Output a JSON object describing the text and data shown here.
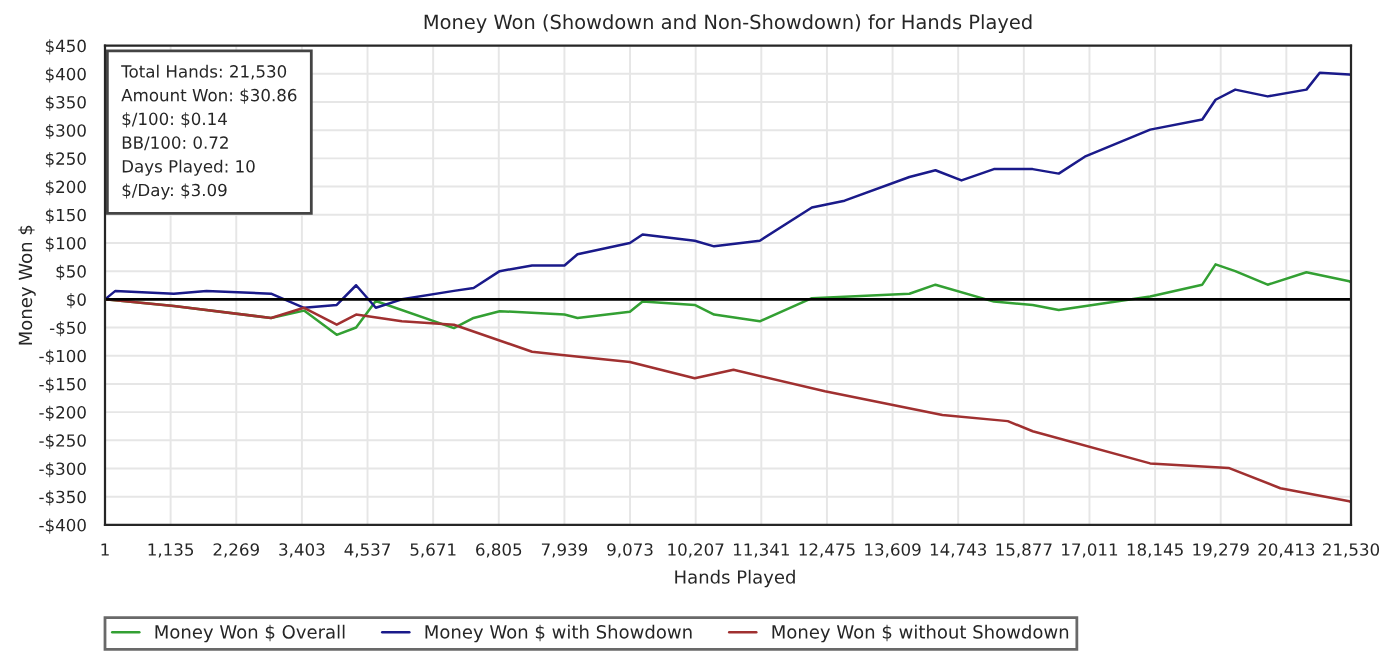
{
  "chart_data": {
    "type": "line",
    "title": "Money Won (Showdown and Non-Showdown) for Hands Played",
    "xlabel": "Hands Played",
    "ylabel": "Money Won $",
    "annotations": [
      "Total Hands: 21,530\nAmount Won: $30.86\n$/100: $0.14\nBB/100: 0.72\nDays Played: 10\n$/Day: $3.09"
    ],
    "xlim": [
      1,
      21530
    ],
    "ylim": [
      -400,
      450
    ],
    "xticks": [
      {
        "value": 1,
        "label": "1"
      },
      {
        "value": 1135,
        "label": "1,135"
      },
      {
        "value": 2269,
        "label": "2,269"
      },
      {
        "value": 3403,
        "label": "3,403"
      },
      {
        "value": 4537,
        "label": "4,537"
      },
      {
        "value": 5671,
        "label": "5,671"
      },
      {
        "value": 6805,
        "label": "6,805"
      },
      {
        "value": 7939,
        "label": "7,939"
      },
      {
        "value": 9073,
        "label": "9,073"
      },
      {
        "value": 10207,
        "label": "10,207"
      },
      {
        "value": 11341,
        "label": "11,341"
      },
      {
        "value": 12475,
        "label": "12,475"
      },
      {
        "value": 13609,
        "label": "13,609"
      },
      {
        "value": 14743,
        "label": "14,743"
      },
      {
        "value": 15877,
        "label": "15,877"
      },
      {
        "value": 17011,
        "label": "17,011"
      },
      {
        "value": 18145,
        "label": "18,145"
      },
      {
        "value": 19279,
        "label": "19,279"
      },
      {
        "value": 20413,
        "label": "20,413"
      },
      {
        "value": 21530,
        "label": "21,530"
      }
    ],
    "yticks": [
      {
        "value": -400,
        "label": "-$400"
      },
      {
        "value": -350,
        "label": "-$350"
      },
      {
        "value": -300,
        "label": "-$300"
      },
      {
        "value": -250,
        "label": "-$250"
      },
      {
        "value": -200,
        "label": "-$200"
      },
      {
        "value": -150,
        "label": "-$150"
      },
      {
        "value": -100,
        "label": "-$100"
      },
      {
        "value": -50,
        "label": "-$50"
      },
      {
        "value": 0,
        "label": "$0"
      },
      {
        "value": 50,
        "label": "$50"
      },
      {
        "value": 100,
        "label": "$100"
      },
      {
        "value": 150,
        "label": "$150"
      },
      {
        "value": 200,
        "label": "$200"
      },
      {
        "value": 250,
        "label": "$250"
      },
      {
        "value": 300,
        "label": "$300"
      },
      {
        "value": 350,
        "label": "$350"
      },
      {
        "value": 400,
        "label": "$400"
      },
      {
        "value": 450,
        "label": "$450"
      }
    ],
    "grid": true,
    "legend": "bottom",
    "ref_lines": [
      {
        "axis": "y",
        "value": 0,
        "color": "#000000"
      }
    ],
    "series": [
      {
        "name": "Money Won $ Overall",
        "color": "#33a033",
        "x": [
          1,
          1190,
          2870,
          3440,
          4005,
          4340,
          4680,
          6030,
          6370,
          6820,
          7940,
          8165,
          9070,
          9290,
          10190,
          10525,
          11315,
          12215,
          13900,
          14350,
          15360,
          16030,
          16480,
          18060,
          18960,
          19190,
          19530,
          20090,
          20760,
          21500,
          21530
        ],
        "values": [
          0,
          -12,
          -33,
          -20,
          -63,
          -50,
          -3,
          -51,
          -33,
          -21,
          -27,
          -33,
          -22,
          -4,
          -10,
          -27,
          -39,
          2,
          10,
          26,
          -4,
          -10,
          -19,
          5,
          26,
          62,
          50,
          26,
          48,
          32,
          30
        ]
      },
      {
        "name": "Money Won $ with Showdown",
        "color": "#1a1a8a",
        "x": [
          1,
          180,
          1190,
          1755,
          2870,
          3440,
          4005,
          4340,
          4680,
          5130,
          6030,
          6370,
          6820,
          7380,
          7940,
          8165,
          9070,
          9290,
          10190,
          10525,
          11315,
          12215,
          12780,
          13900,
          14350,
          14800,
          15360,
          16030,
          16480,
          16930,
          18060,
          18960,
          19190,
          19530,
          20090,
          20760,
          20990,
          21500,
          21530
        ],
        "values": [
          0,
          15,
          10,
          15,
          10,
          -15,
          -10,
          25,
          -15,
          0,
          15,
          20,
          50,
          60,
          60,
          80,
          100,
          115,
          104,
          94,
          104,
          163,
          175,
          217,
          229,
          211,
          231,
          231,
          223,
          253,
          301,
          319,
          354,
          372,
          360,
          372,
          402,
          399,
          398
        ]
      },
      {
        "name": "Money Won $ without Showdown",
        "color": "#a03030",
        "x": [
          1,
          1190,
          2870,
          3440,
          4005,
          4340,
          5130,
          6030,
          7380,
          7940,
          9070,
          10190,
          10860,
          12440,
          14470,
          15600,
          16030,
          18060,
          19415,
          20310,
          21500,
          21530
        ],
        "values": [
          0,
          -12,
          -33,
          -15,
          -45,
          -27,
          -39,
          -45,
          -93,
          -99,
          -111,
          -140,
          -125,
          -163,
          -205,
          -216,
          -234,
          -291,
          -299,
          -335,
          -358,
          -360
        ]
      }
    ]
  }
}
